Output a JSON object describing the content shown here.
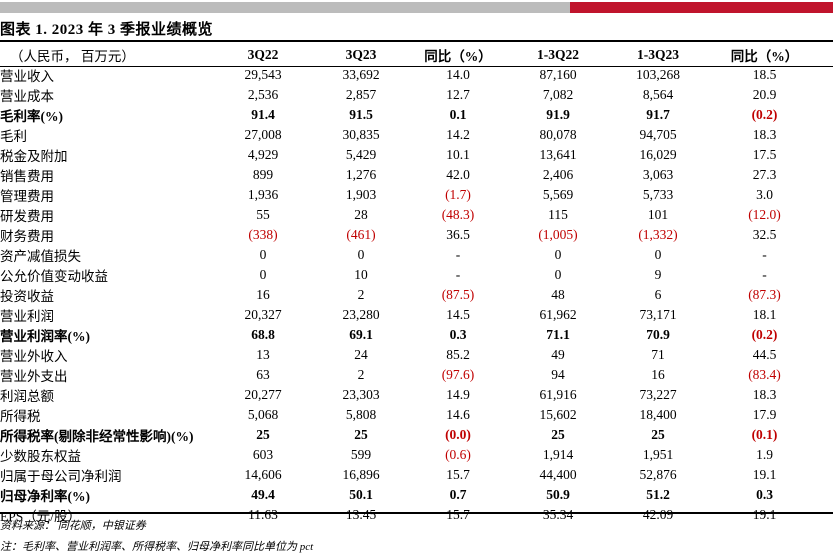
{
  "title": "图表 1. 2023 年 3 季报业绩概览",
  "header": {
    "unit": "（人民币， 百万元）",
    "cols": [
      "3Q22",
      "3Q23",
      "同比（%）",
      "1-3Q22",
      "1-3Q23",
      "同比（%）"
    ]
  },
  "rows": [
    {
      "label": "营业收入",
      "bold": false,
      "cells": [
        "29,543",
        "33,692",
        "14.0",
        "87,160",
        "103,268",
        "18.5"
      ],
      "neg": [
        false,
        false,
        false,
        false,
        false,
        false
      ]
    },
    {
      "label": "营业成本",
      "bold": false,
      "cells": [
        "2,536",
        "2,857",
        "12.7",
        "7,082",
        "8,564",
        "20.9"
      ],
      "neg": [
        false,
        false,
        false,
        false,
        false,
        false
      ]
    },
    {
      "label": "毛利率(%)",
      "bold": true,
      "cells": [
        "91.4",
        "91.5",
        "0.1",
        "91.9",
        "91.7",
        "(0.2)"
      ],
      "neg": [
        false,
        false,
        false,
        false,
        false,
        true
      ]
    },
    {
      "label": "毛利",
      "bold": false,
      "cells": [
        "27,008",
        "30,835",
        "14.2",
        "80,078",
        "94,705",
        "18.3"
      ],
      "neg": [
        false,
        false,
        false,
        false,
        false,
        false
      ]
    },
    {
      "label": "税金及附加",
      "bold": false,
      "cells": [
        "4,929",
        "5,429",
        "10.1",
        "13,641",
        "16,029",
        "17.5"
      ],
      "neg": [
        false,
        false,
        false,
        false,
        false,
        false
      ]
    },
    {
      "label": "销售费用",
      "bold": false,
      "cells": [
        "899",
        "1,276",
        "42.0",
        "2,406",
        "3,063",
        "27.3"
      ],
      "neg": [
        false,
        false,
        false,
        false,
        false,
        false
      ]
    },
    {
      "label": "管理费用",
      "bold": false,
      "cells": [
        "1,936",
        "1,903",
        "(1.7)",
        "5,569",
        "5,733",
        "3.0"
      ],
      "neg": [
        false,
        false,
        true,
        false,
        false,
        false
      ]
    },
    {
      "label": "研发费用",
      "bold": false,
      "cells": [
        "55",
        "28",
        "(48.3)",
        "115",
        "101",
        "(12.0)"
      ],
      "neg": [
        false,
        false,
        true,
        false,
        false,
        true
      ]
    },
    {
      "label": "财务费用",
      "bold": false,
      "cells": [
        "(338)",
        "(461)",
        "36.5",
        "(1,005)",
        "(1,332)",
        "32.5"
      ],
      "neg": [
        true,
        true,
        false,
        true,
        true,
        false
      ]
    },
    {
      "label": "资产减值损失",
      "bold": false,
      "cells": [
        "0",
        "0",
        "-",
        "0",
        "0",
        "-"
      ],
      "neg": [
        false,
        false,
        false,
        false,
        false,
        false
      ]
    },
    {
      "label": "公允价值变动收益",
      "bold": false,
      "cells": [
        "0",
        "10",
        "-",
        "0",
        "9",
        "-"
      ],
      "neg": [
        false,
        false,
        false,
        false,
        false,
        false
      ]
    },
    {
      "label": "投资收益",
      "bold": false,
      "cells": [
        "16",
        "2",
        "(87.5)",
        "48",
        "6",
        "(87.3)"
      ],
      "neg": [
        false,
        false,
        true,
        false,
        false,
        true
      ]
    },
    {
      "label": "营业利润",
      "bold": false,
      "cells": [
        "20,327",
        "23,280",
        "14.5",
        "61,962",
        "73,171",
        "18.1"
      ],
      "neg": [
        false,
        false,
        false,
        false,
        false,
        false
      ]
    },
    {
      "label": "营业利润率(%)",
      "bold": true,
      "cells": [
        "68.8",
        "69.1",
        "0.3",
        "71.1",
        "70.9",
        "(0.2)"
      ],
      "neg": [
        false,
        false,
        false,
        false,
        false,
        true
      ]
    },
    {
      "label": "营业外收入",
      "bold": false,
      "cells": [
        "13",
        "24",
        "85.2",
        "49",
        "71",
        "44.5"
      ],
      "neg": [
        false,
        false,
        false,
        false,
        false,
        false
      ]
    },
    {
      "label": "营业外支出",
      "bold": false,
      "cells": [
        "63",
        "2",
        "(97.6)",
        "94",
        "16",
        "(83.4)"
      ],
      "neg": [
        false,
        false,
        true,
        false,
        false,
        true
      ]
    },
    {
      "label": "利润总额",
      "bold": false,
      "cells": [
        "20,277",
        "23,303",
        "14.9",
        "61,916",
        "73,227",
        "18.3"
      ],
      "neg": [
        false,
        false,
        false,
        false,
        false,
        false
      ]
    },
    {
      "label": "所得税",
      "bold": false,
      "cells": [
        "5,068",
        "5,808",
        "14.6",
        "15,602",
        "18,400",
        "17.9"
      ],
      "neg": [
        false,
        false,
        false,
        false,
        false,
        false
      ]
    },
    {
      "label": "所得税率(剔除非经常性影响)(%)",
      "bold": true,
      "cells": [
        "25",
        "25",
        "(0.0)",
        "25",
        "25",
        "(0.1)"
      ],
      "neg": [
        false,
        false,
        true,
        false,
        false,
        true
      ]
    },
    {
      "label": "少数股东权益",
      "bold": false,
      "cells": [
        "603",
        "599",
        "(0.6)",
        "1,914",
        "1,951",
        "1.9"
      ],
      "neg": [
        false,
        false,
        true,
        false,
        false,
        false
      ]
    },
    {
      "label": "归属于母公司净利润",
      "bold": false,
      "cells": [
        "14,606",
        "16,896",
        "15.7",
        "44,400",
        "52,876",
        "19.1"
      ],
      "neg": [
        false,
        false,
        false,
        false,
        false,
        false
      ]
    },
    {
      "label": "归母净利率(%)",
      "bold": true,
      "cells": [
        "49.4",
        "50.1",
        "0.7",
        "50.9",
        "51.2",
        "0.3"
      ],
      "neg": [
        false,
        false,
        false,
        false,
        false,
        false
      ]
    },
    {
      "label": "EPS（元/股）",
      "bold": false,
      "cells": [
        "11.63",
        "13.45",
        "15.7",
        "35.34",
        "42.09",
        "19.1"
      ],
      "neg": [
        false,
        false,
        false,
        false,
        false,
        false
      ]
    }
  ],
  "source": "资料来源： 同花顺，中银证券",
  "note": "注：毛利率、营业利润率、所得税率、归母净利率同比单位为 pct",
  "colors": {
    "accent_red": "#c0142c",
    "neg_red": "#c00000",
    "bar_grey": "#bcbcbc"
  }
}
